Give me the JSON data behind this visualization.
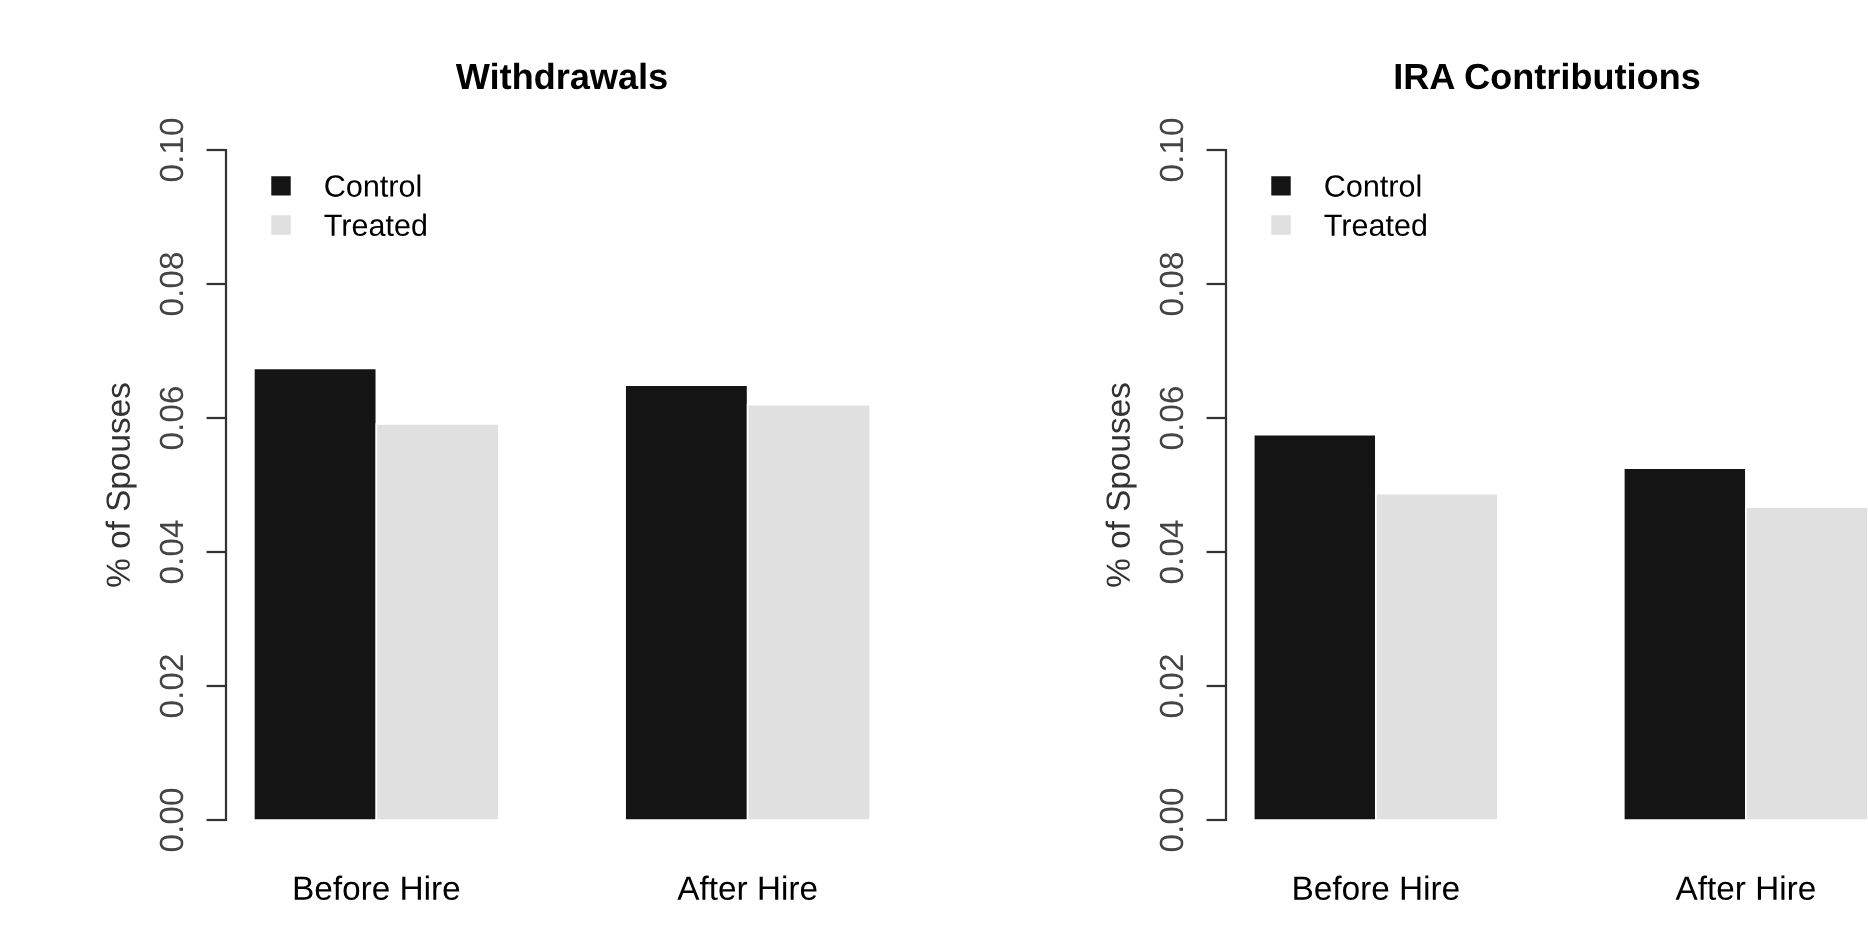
{
  "chart_data": [
    {
      "type": "bar",
      "title": "Withdrawals",
      "ylabel": "% of Spouses",
      "categories": [
        "Before Hire",
        "After Hire"
      ],
      "series": [
        {
          "name": "Control",
          "color": "#141414",
          "values": [
            0.0674,
            0.0649
          ]
        },
        {
          "name": "Treated",
          "color": "#e0e0e0",
          "values": [
            0.0591,
            0.062
          ]
        }
      ],
      "ylim": [
        0,
        0.1
      ],
      "yticks": [
        {
          "value": 0,
          "label": "0.00"
        },
        {
          "value": 0.02,
          "label": "0.02"
        },
        {
          "value": 0.04,
          "label": "0.04"
        },
        {
          "value": 0.06,
          "label": "0.06"
        },
        {
          "value": 0.08,
          "label": "0.08"
        },
        {
          "value": 0.1,
          "label": "0.10"
        }
      ],
      "legend": "top left"
    },
    {
      "type": "bar",
      "title": "IRA Contributions",
      "ylabel": "% of Spouses",
      "categories": [
        "Before Hire",
        "After Hire"
      ],
      "series": [
        {
          "name": "Control",
          "color": "#141414",
          "values": [
            0.0575,
            0.0525
          ]
        },
        {
          "name": "Treated",
          "color": "#e0e0e0",
          "values": [
            0.0487,
            0.0467
          ]
        }
      ],
      "ylim": [
        0,
        0.1
      ],
      "yticks": [
        {
          "value": 0,
          "label": "0.00"
        },
        {
          "value": 0.02,
          "label": "0.02"
        },
        {
          "value": 0.04,
          "label": "0.04"
        },
        {
          "value": 0.06,
          "label": "0.06"
        },
        {
          "value": 0.08,
          "label": "0.08"
        },
        {
          "value": 0.1,
          "label": "0.10"
        }
      ],
      "legend": "top left"
    }
  ]
}
